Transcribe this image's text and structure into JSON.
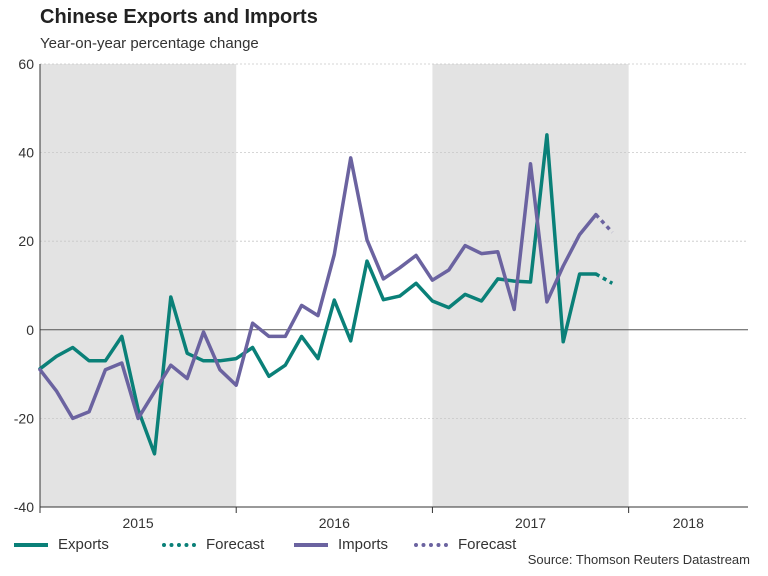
{
  "title": "Chinese Exports and Imports",
  "subtitle": "Year-on-year percentage change",
  "source": "Source: Thomson Reuters Datastream",
  "chart_data": {
    "type": "line",
    "ylim": [
      -40,
      60
    ],
    "yticks": [
      -40,
      -20,
      0,
      20,
      40,
      60
    ],
    "x_start_month": 0,
    "x_end_month": 43.3,
    "year_labels": [
      {
        "label": "2015",
        "start": 0,
        "end": 12
      },
      {
        "label": "2016",
        "start": 12,
        "end": 24
      },
      {
        "label": "2017",
        "start": 24,
        "end": 36
      },
      {
        "label": "2018",
        "start": 36,
        "end": 43.3
      }
    ],
    "shaded_years": [
      "2015",
      "2017"
    ],
    "series": [
      {
        "name": "Exports",
        "color": "#0a8078",
        "style": "solid",
        "values": [
          -8.8,
          -6,
          -4,
          -7,
          -7,
          -1.5,
          -18,
          -28,
          7.4,
          -5.3,
          -7,
          -7,
          -6.5,
          -4,
          -10.5,
          -8,
          -1.5,
          -6.5,
          6.7,
          -2.5,
          15.5,
          6.8,
          7.6,
          10.5,
          6.5,
          5,
          8,
          6.5,
          11.5,
          11,
          10.8,
          44,
          -2.7,
          12.6,
          12.6
        ]
      },
      {
        "name": "Forecast",
        "color": "#0a8078",
        "style": "dotted",
        "start_month": 34,
        "values": [
          12.6,
          10.5
        ]
      },
      {
        "name": "Imports",
        "color": "#6b63a0",
        "style": "solid",
        "values": [
          -9,
          -13.8,
          -20,
          -18.5,
          -9,
          -7.5,
          -20,
          -14,
          -8,
          -11,
          -0.5,
          -9,
          -12.5,
          1.5,
          -1.5,
          -1.5,
          5.5,
          3.2,
          17,
          38.8,
          20.3,
          11.5,
          14,
          16.8,
          11.2,
          13.5,
          19,
          17.2,
          17.6,
          4.6,
          37.5,
          6.3,
          14.4,
          21.5,
          26
        ]
      },
      {
        "name": "Forecast",
        "color": "#6b63a0",
        "style": "dotted",
        "start_month": 34,
        "values": [
          26,
          22
        ]
      }
    ]
  }
}
